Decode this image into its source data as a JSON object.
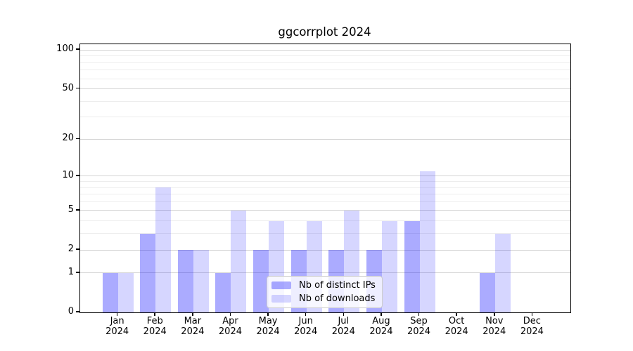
{
  "chart_data": {
    "type": "bar",
    "title": "ggcorrplot 2024",
    "categories": [
      "Jan",
      "Feb",
      "Mar",
      "Apr",
      "May",
      "Jun",
      "Jul",
      "Aug",
      "Sep",
      "Oct",
      "Nov",
      "Dec"
    ],
    "x_sublabel_year": "2024",
    "series": [
      {
        "name": "Nb of distinct IPs",
        "color": "rgba(0,0,255,0.33)",
        "values": [
          1,
          3,
          2,
          1,
          2,
          2,
          2,
          2,
          4,
          0,
          1,
          0
        ]
      },
      {
        "name": "Nb of downloads",
        "color": "rgba(0,0,255,0.16)",
        "values": [
          1,
          8,
          2,
          5,
          4,
          4,
          5,
          4,
          11,
          0,
          3,
          0
        ]
      }
    ],
    "yscale": "log1p",
    "ylim": [
      0,
      110
    ],
    "y_major_ticks": [
      0,
      1,
      2,
      5,
      10,
      20,
      50,
      100
    ],
    "y_minor_gridlines": [
      3,
      4,
      6,
      7,
      8,
      9,
      30,
      40,
      60,
      70,
      80,
      90
    ],
    "grid": true,
    "legend_position": "lower-center-inside"
  },
  "colors": {
    "background": "#ffffff",
    "spine": "#000000",
    "grid_major": "#d4d4d4",
    "grid_minor": "#ededed",
    "text": "#000000"
  }
}
